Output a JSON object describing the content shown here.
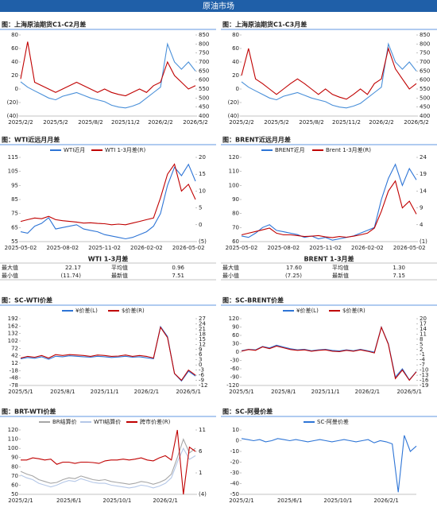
{
  "header": {
    "title": "原油市场"
  },
  "chart_data": [
    {
      "type": "line",
      "title": "图：上海原油期货C1-C2月差",
      "categories": [
        "2025/2/2",
        null,
        null,
        null,
        null,
        "2025/5/2",
        null,
        null,
        null,
        null,
        "2025/8/2",
        null,
        null,
        null,
        null,
        "2025/11/2",
        null,
        null,
        null,
        null,
        "2026/2/2",
        null,
        null,
        null,
        null,
        "2026/5/2"
      ],
      "series": [
        {
          "color": "#4a90d9",
          "axis": "y2",
          "values": [
            590,
            560,
            540,
            520,
            500,
            490,
            510,
            520,
            530,
            515,
            500,
            490,
            480,
            460,
            450,
            445,
            455,
            470,
            500,
            530,
            560,
            800,
            700,
            660,
            700,
            650
          ]
        },
        {
          "color": "#c00000",
          "values": [
            15,
            70,
            10,
            5,
            0,
            -5,
            0,
            5,
            10,
            5,
            0,
            -5,
            0,
            -5,
            -8,
            -10,
            -5,
            0,
            -5,
            5,
            10,
            40,
            20,
            10,
            0,
            5
          ]
        }
      ],
      "ylim": [
        -40,
        80
      ],
      "yticks": [
        {
          "value": -40,
          "label": "(40)"
        },
        {
          "value": -20,
          "label": "(20)"
        },
        0,
        20,
        40,
        60,
        80
      ],
      "y2lim": [
        400,
        850
      ],
      "y2ticks": [
        400,
        450,
        500,
        550,
        600,
        650,
        700,
        750,
        800,
        850
      ]
    },
    {
      "type": "line",
      "title": "图：上海原油期货C1-C3月差",
      "categories": [
        "2025/2/2",
        null,
        null,
        null,
        null,
        "2025/5/2",
        null,
        null,
        null,
        null,
        "2025/8/2",
        null,
        null,
        null,
        null,
        "2025/11/2",
        null,
        null,
        null,
        null,
        "2026/2/2",
        null,
        null,
        null,
        null,
        "2026/5/2"
      ],
      "series": [
        {
          "color": "#4a90d9",
          "axis": "y2",
          "values": [
            590,
            560,
            540,
            520,
            500,
            490,
            510,
            520,
            530,
            515,
            500,
            490,
            480,
            460,
            450,
            445,
            455,
            470,
            500,
            530,
            560,
            800,
            700,
            660,
            700,
            650
          ]
        },
        {
          "color": "#c00000",
          "values": [
            20,
            60,
            15,
            8,
            0,
            -8,
            0,
            8,
            15,
            8,
            0,
            -8,
            0,
            -8,
            -12,
            -15,
            -8,
            0,
            -8,
            8,
            15,
            60,
            30,
            15,
            0,
            8
          ]
        }
      ],
      "ylim": [
        -40,
        80
      ],
      "yticks": [
        {
          "value": -40,
          "label": "(40)"
        },
        {
          "value": -20,
          "label": "(20)"
        },
        0,
        20,
        40,
        60,
        80
      ],
      "y2lim": [
        400,
        850
      ],
      "y2ticks": [
        400,
        450,
        500,
        550,
        600,
        650,
        700,
        750,
        800,
        850
      ]
    },
    {
      "type": "line",
      "title": "图：WTI近远月月差",
      "categories": [
        "2025-05-02",
        null,
        null,
        null,
        null,
        null,
        "2025-08-02",
        null,
        null,
        null,
        null,
        null,
        "2025-11-02",
        null,
        null,
        null,
        null,
        null,
        "2026-02-02",
        null,
        null,
        null,
        null,
        null,
        "2026-05-02",
        null
      ],
      "series": [
        {
          "name": "WTI近月",
          "color": "#2e75d6",
          "values": [
            62,
            61,
            66,
            68,
            72,
            64,
            65,
            66,
            67,
            64,
            63,
            62,
            60,
            59,
            58,
            57,
            58,
            60,
            62,
            66,
            75,
            95,
            108,
            102,
            110,
            98
          ]
        },
        {
          "name": "WTI 1-3月差(R)",
          "color": "#c00000",
          "axis": "y2",
          "values": [
            1,
            1.5,
            2,
            1.8,
            2.5,
            1.5,
            1.2,
            1,
            0.8,
            0.5,
            0.6,
            0.4,
            0.3,
            0,
            0.2,
            0,
            0.5,
            1,
            1.5,
            2,
            8,
            15,
            18,
            10,
            12,
            7.51
          ]
        }
      ],
      "ylim": [
        55,
        115
      ],
      "yticks": [
        55,
        65,
        75,
        85,
        95,
        105,
        115
      ],
      "y2lim": [
        -5,
        20
      ],
      "y2ticks": [
        {
          "value": -5,
          "label": "(5)"
        },
        0,
        5,
        10,
        15,
        20
      ],
      "stats": {
        "title": "WTI 1-3月差",
        "rows": [
          [
            "最大值",
            "22.17",
            "平均值",
            "0.96"
          ],
          [
            "最小值",
            "(11.74)",
            "最新值",
            "7.51"
          ]
        ]
      }
    },
    {
      "type": "line",
      "title": "图：BRENT近远月月差",
      "categories": [
        "2025-05-02",
        null,
        null,
        null,
        null,
        null,
        "2025-08-02",
        null,
        null,
        null,
        null,
        null,
        "2025-11-02",
        null,
        null,
        null,
        null,
        null,
        "2026-02-02",
        null,
        null,
        null,
        null,
        null,
        "2026-05-02",
        null
      ],
      "series": [
        {
          "name": "BRENT近月",
          "color": "#2e75d6",
          "values": [
            64,
            63,
            66,
            70,
            72,
            68,
            67,
            66,
            65,
            63,
            64,
            62,
            63,
            61,
            62,
            63,
            64,
            66,
            68,
            70,
            90,
            105,
            115,
            100,
            112,
            104
          ]
        },
        {
          "name": "Brent 1-3月差(R)",
          "color": "#c00000",
          "axis": "y2",
          "values": [
            1,
            1.5,
            2,
            2.5,
            3,
            1.5,
            1,
            1,
            0.8,
            0.5,
            0.6,
            0.8,
            0.4,
            0.2,
            0.5,
            0.3,
            0.6,
            1,
            1.5,
            3,
            8,
            14,
            17,
            9,
            11,
            7.15
          ]
        }
      ],
      "ylim": [
        60,
        120
      ],
      "yticks": [
        60,
        70,
        80,
        90,
        100,
        110,
        120
      ],
      "y2lim": [
        -1,
        24
      ],
      "y2ticks": [
        {
          "value": -1,
          "label": "(1)"
        },
        4,
        9,
        14,
        19,
        24
      ],
      "stats": {
        "title": "BRENT 1-3月差",
        "rows": [
          [
            "最大值",
            "17.60",
            "平均值",
            "1.30"
          ],
          [
            "最小值",
            "(7.25)",
            "最新值",
            "7.15"
          ]
        ]
      }
    },
    {
      "type": "line",
      "title": "图：SC-WTI价差",
      "categories": [
        "2025/5/1",
        null,
        null,
        null,
        null,
        null,
        "2025/8/1",
        null,
        null,
        null,
        null,
        null,
        "2025/11/1",
        null,
        null,
        null,
        null,
        null,
        "2026/2/1",
        null,
        null,
        null,
        null,
        null,
        "2026/5/1",
        null
      ],
      "series": [
        {
          "name": "¥价差(L)",
          "color": "#2e75d6",
          "values": [
            30,
            35,
            32,
            38,
            28,
            40,
            38,
            42,
            40,
            38,
            36,
            40,
            38,
            35,
            37,
            40,
            36,
            38,
            34,
            30,
            160,
            120,
            -30,
            -60,
            -20,
            -40
          ]
        },
        {
          "name": "$价差(R)",
          "color": "#c00000",
          "axis": "y2",
          "values": [
            4,
            5,
            4.5,
            5.5,
            4,
            6,
            5.5,
            6,
            5.8,
            5.5,
            5,
            5.8,
            5.5,
            5,
            5.2,
            5.8,
            5,
            5.5,
            5,
            4,
            22,
            16,
            -5,
            -9,
            -3,
            -6
          ]
        }
      ],
      "ylim": [
        -78,
        192
      ],
      "yticks": [
        -78,
        -48,
        -18,
        12,
        42,
        72,
        102,
        132,
        162,
        192
      ],
      "y2lim": [
        -12,
        27
      ],
      "y2ticks": [
        -12,
        -9,
        -6,
        -3,
        0,
        3,
        6,
        9,
        12,
        15,
        18,
        21,
        24,
        27
      ]
    },
    {
      "type": "line",
      "title": "图：SC-BRENT价差",
      "categories": [
        "2025/5/1",
        null,
        null,
        null,
        null,
        null,
        "2025/8/1",
        null,
        null,
        null,
        null,
        null,
        "2025/11/1",
        null,
        null,
        null,
        null,
        null,
        "2026/2/1",
        null,
        null,
        null,
        null,
        null,
        "2026/5/1",
        null
      ],
      "series": [
        {
          "name": "¥价差(L)",
          "color": "#2e75d6",
          "values": [
            5,
            10,
            8,
            20,
            15,
            25,
            18,
            12,
            8,
            10,
            5,
            8,
            10,
            6,
            4,
            8,
            5,
            10,
            5,
            0,
            90,
            30,
            -90,
            -60,
            -100,
            -70
          ]
        },
        {
          "name": "$价差(R)",
          "color": "#c00000",
          "axis": "y2",
          "values": [
            1,
            2,
            1.5,
            3.5,
            2.5,
            4,
            3,
            2,
            1.5,
            1.8,
            1,
            1.5,
            1.8,
            1,
            0.8,
            1.5,
            1,
            1.8,
            1,
            0,
            15,
            5,
            -15,
            -10,
            -16,
            -11
          ]
        }
      ],
      "ylim": [
        -120,
        120
      ],
      "yticks": [
        -120,
        -90,
        -60,
        -30,
        0,
        30,
        60,
        90,
        120
      ],
      "y2lim": [
        -19,
        20
      ],
      "y2ticks": [
        -19,
        -16,
        -13,
        -10,
        -7,
        -4,
        -1,
        2,
        5,
        8,
        11,
        14,
        17,
        20
      ]
    },
    {
      "type": "line",
      "title": "图：BRT-WTI价差",
      "categories": [
        "2025/2/1",
        null,
        null,
        null,
        null,
        null,
        null,
        null,
        "2025/6/1",
        null,
        null,
        null,
        null,
        null,
        null,
        null,
        "2025/10/1",
        null,
        null,
        null,
        null,
        null,
        null,
        null,
        "2026/2/1",
        null,
        null,
        null,
        null,
        null
      ],
      "series": [
        {
          "name": "BR结算价",
          "color": "#a6a6a6",
          "values": [
            75,
            72,
            70,
            66,
            64,
            62,
            63,
            66,
            68,
            67,
            70,
            68,
            66,
            65,
            66,
            64,
            63,
            62,
            61,
            62,
            64,
            63,
            61,
            63,
            66,
            72,
            90,
            110,
            95,
            100
          ]
        },
        {
          "name": "WTI结算价",
          "color": "#b4c7e7",
          "values": [
            71,
            68,
            66,
            62,
            60,
            58,
            60,
            63,
            65,
            64,
            67,
            65,
            63,
            62,
            62,
            60,
            59,
            58,
            57,
            58,
            60,
            59,
            57,
            59,
            62,
            68,
            85,
            100,
            88,
            92
          ]
        },
        {
          "name": "跨市价差(R)",
          "color": "#c00000",
          "axis": "y2",
          "values": [
            4,
            4,
            4.5,
            4.3,
            4,
            4.2,
            3,
            3.5,
            3.5,
            3.2,
            3.5,
            3.5,
            3.4,
            3.2,
            3.8,
            4,
            4,
            4.2,
            4,
            4.2,
            4.5,
            4,
            3.8,
            4.5,
            5,
            4,
            11,
            -4,
            7,
            6
          ]
        }
      ],
      "ylim": [
        50,
        120
      ],
      "yticks": [
        50,
        60,
        70,
        80,
        90,
        100,
        110,
        120
      ],
      "y2lim": [
        -4,
        11
      ],
      "y2ticks": [
        {
          "value": -4,
          "label": "(4)"
        },
        1,
        6,
        11
      ]
    },
    {
      "type": "line",
      "title": "图：SC-阿曼价差",
      "categories": [
        "2025/2/1",
        null,
        null,
        null,
        null,
        null,
        null,
        null,
        "2025/6/1",
        null,
        null,
        null,
        null,
        null,
        null,
        null,
        "2025/10/1",
        null,
        null,
        null,
        null,
        null,
        null,
        null,
        "2026/2/1",
        null,
        null,
        null,
        null,
        null
      ],
      "series": [
        {
          "name": "SC-阿曼价差",
          "color": "#2e75d6",
          "values": [
            2,
            1,
            0,
            1,
            -1,
            0,
            2,
            1,
            0,
            1,
            0,
            -1,
            0,
            1,
            0,
            -1,
            0,
            1,
            0,
            -1,
            0,
            1,
            -2,
            0,
            -1,
            -3,
            -48,
            5,
            -10,
            -5
          ]
        }
      ],
      "ylim": [
        -50,
        10
      ],
      "yticks": [
        -50,
        -40,
        -30,
        -20,
        -10,
        0,
        10
      ]
    }
  ]
}
